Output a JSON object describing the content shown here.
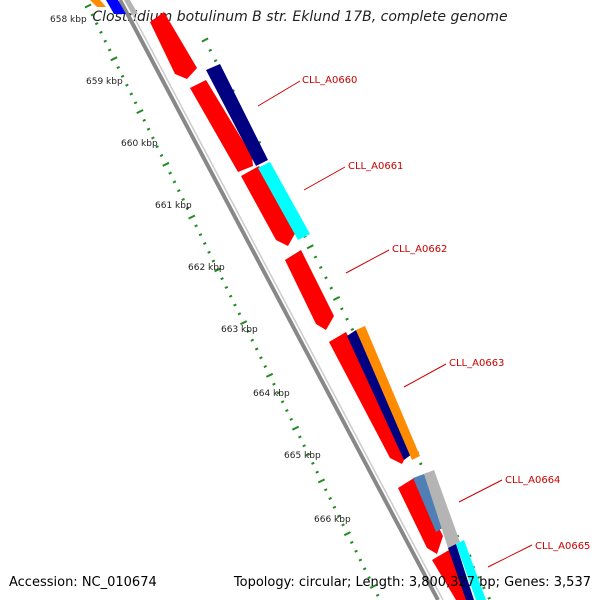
{
  "map": {
    "title": "Clostridium botulinum B str. Eklund 17B, complete genome",
    "accession_text": "Accession: NC_010674",
    "topology_text": "Topology: circular; Length: 3,800,327 bp; Genes: 3,537"
  },
  "scale": {
    "tick_labels": [
      "658 kbp",
      "659 kbp",
      "660 kbp",
      "661 kbp",
      "662 kbp",
      "663 kbp",
      "664 kbp",
      "665 kbp",
      "666 kbp"
    ]
  },
  "genes": {
    "labels": [
      "CLL_A0660",
      "CLL_A0661",
      "CLL_A0662",
      "CLL_A0663",
      "CLL_A0664",
      "CLL_A0665"
    ]
  },
  "colors": {
    "backbone": "#888888",
    "forward_feature": "#ff0000",
    "navy_feature": "#000080",
    "cyan_feature": "#00ffff",
    "orange_feature": "#ff8c00",
    "steelblue_feature": "#4f7fb5",
    "grey_feature": "#b4b4b4",
    "blue_feature": "#0000ff",
    "tick_marks": "#228b22",
    "label_lines": "#cc0000"
  }
}
